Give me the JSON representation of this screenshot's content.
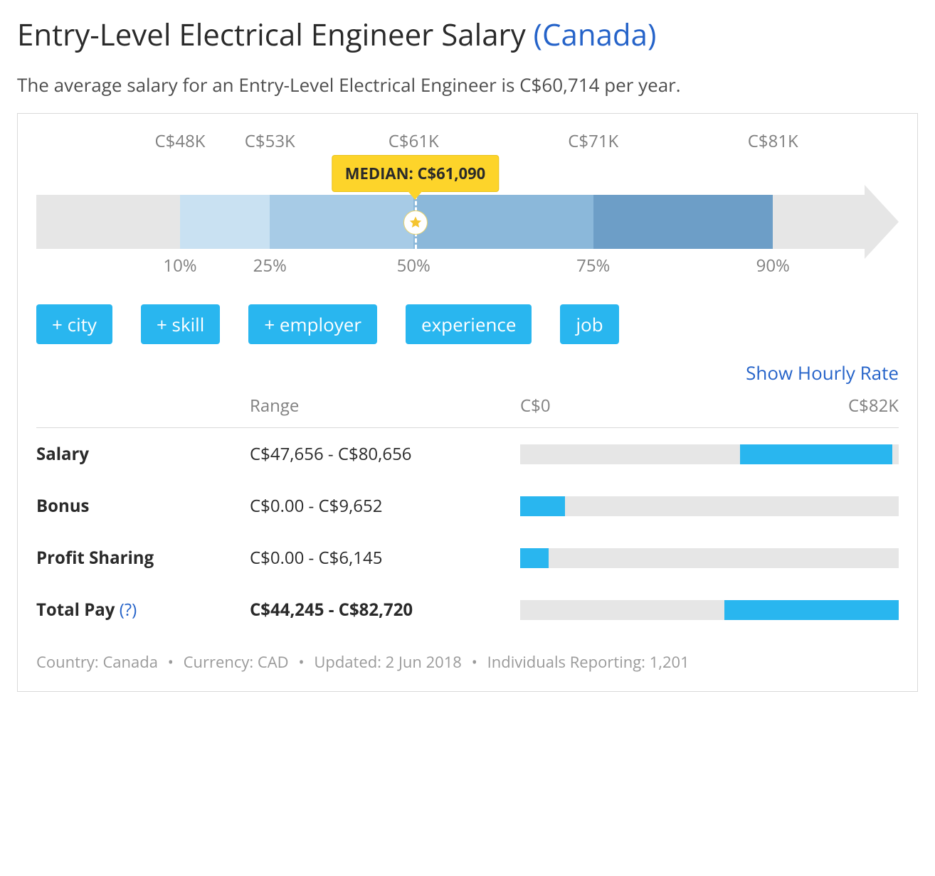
{
  "header": {
    "title_prefix": "Entry-Level Electrical Engineer Salary ",
    "location": "(Canada)",
    "subhead": "The average salary for an Entry-Level Electrical Engineer is C$60,714 per year."
  },
  "chart": {
    "axis_min": 40000,
    "axis_max": 88000,
    "arrow_end_pct": 96,
    "arrow_body_color": "#e6e6e6",
    "arrow_head_color": "#e6e6e6",
    "head_width_pct": 4,
    "percentiles": [
      {
        "pct_label": "10%",
        "value_label": "C$48K",
        "value": 48000
      },
      {
        "pct_label": "25%",
        "value_label": "C$53K",
        "value": 53000
      },
      {
        "pct_label": "50%",
        "value_label": "C$61K",
        "value": 61000
      },
      {
        "pct_label": "75%",
        "value_label": "C$71K",
        "value": 71000
      },
      {
        "pct_label": "90%",
        "value_label": "C$81K",
        "value": 81000
      }
    ],
    "segment_colors": [
      "#c9e1f2",
      "#a7cbe6",
      "#8bb8da",
      "#6d9ec7"
    ],
    "median": {
      "label": "MEDIAN: C$61,090",
      "value": 61090,
      "pill_bg": "#fdd42a",
      "pill_border": "#e9c21a",
      "star_fill": "#f4c430"
    }
  },
  "filters": {
    "buttons": [
      {
        "label": "+ city"
      },
      {
        "label": "+ skill"
      },
      {
        "label": "+ employer"
      },
      {
        "label": "experience"
      },
      {
        "label": "job"
      }
    ],
    "button_bg": "#29b6ef",
    "button_fg": "#ffffff"
  },
  "toggle_link": "Show Hourly Rate",
  "ranges": {
    "header_label": "Range",
    "axis_min_label": "C$0",
    "axis_max_label": "C$82K",
    "axis_min": 0,
    "axis_max": 82000,
    "bar_bg": "#e6e6e6",
    "bar_fg": "#29b6ef",
    "rows": [
      {
        "label": "Salary",
        "range_text": "C$47,656 - C$80,656",
        "low": 47656,
        "high": 80656,
        "bold": false,
        "help": false
      },
      {
        "label": "Bonus",
        "range_text": "C$0.00 - C$9,652",
        "low": 0,
        "high": 9652,
        "bold": false,
        "help": false
      },
      {
        "label": "Profit Sharing",
        "range_text": "C$0.00 - C$6,145",
        "low": 0,
        "high": 6145,
        "bold": false,
        "help": false
      },
      {
        "label": "Total Pay",
        "range_text": "C$44,245 - C$82,720",
        "low": 44245,
        "high": 82720,
        "bold": true,
        "help": true
      }
    ]
  },
  "meta": {
    "country_label": "Country: ",
    "country": "Canada",
    "currency_label": "Currency: ",
    "currency": "CAD",
    "updated_label": "Updated: ",
    "updated": "2 Jun 2018",
    "reporting_label": "Individuals Reporting: ",
    "reporting": "1,201",
    "dot": "•"
  },
  "colors": {
    "text_dark": "#2a2a2a",
    "text_muted": "#808080",
    "link_blue": "#2563c9",
    "card_border": "#d9d9d9"
  }
}
